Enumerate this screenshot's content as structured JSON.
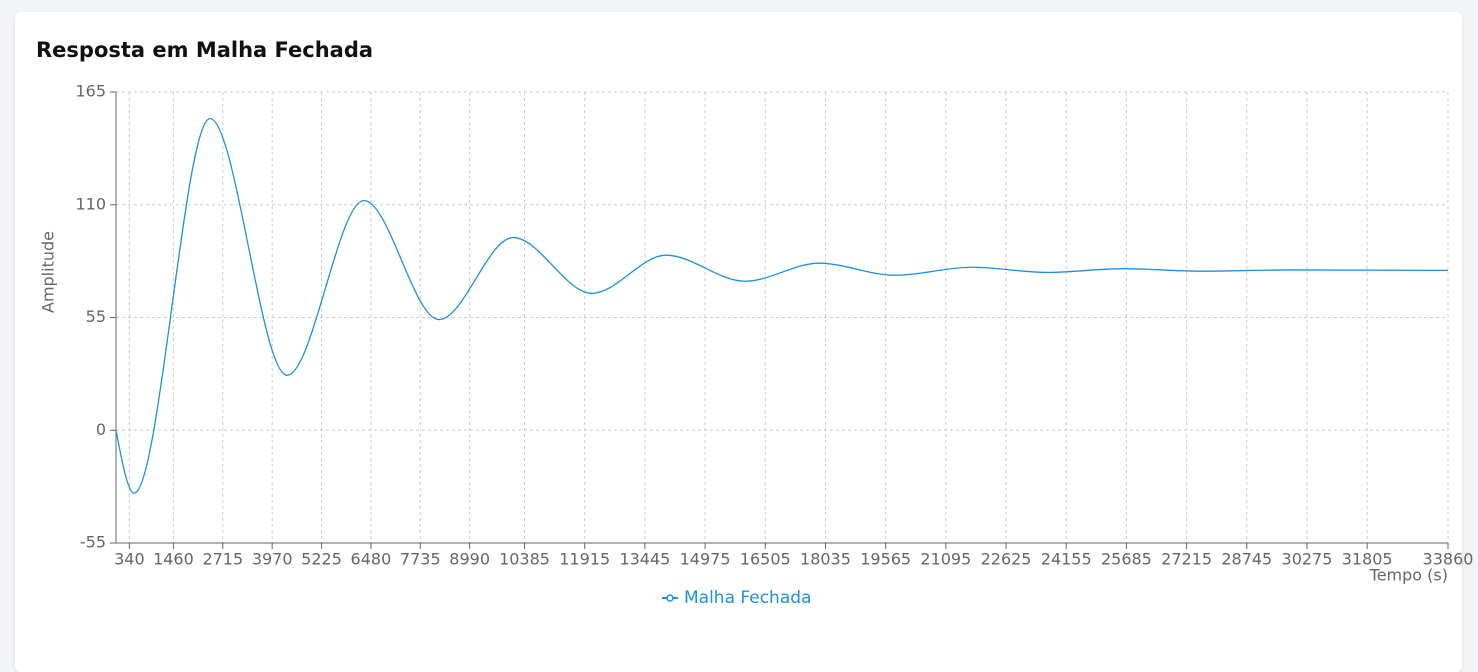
{
  "chart_data": {
    "type": "line",
    "title": "Resposta em Malha Fechada",
    "y_label": "Amplitude",
    "x_label": "Tempo (s)",
    "x": [
      0,
      458,
      2390,
      4347,
      6304,
      8210,
      10092,
      12100,
      13980,
      15989,
      17870,
      19802,
      21760,
      23690,
      25600,
      27550,
      29900,
      33860
    ],
    "series": [
      {
        "name": "Malha Fechada",
        "color": "#1c8fe3",
        "values": [
          0,
          -30.7,
          152,
          26.8,
          112,
          54,
          94,
          66.8,
          85.4,
          72.7,
          81.5,
          75.6,
          79.5,
          77,
          78.8,
          77.6,
          78.2,
          78
        ]
      }
    ],
    "xlim": [
      0,
      33860
    ],
    "xticks": [
      340,
      1460,
      2715,
      3970,
      5225,
      6480,
      7735,
      8990,
      10385,
      11915,
      13445,
      14975,
      16505,
      18035,
      19565,
      21095,
      22625,
      24155,
      25685,
      27215,
      28745,
      30275,
      31805,
      33860
    ],
    "ylim": [
      -55,
      165
    ],
    "yticks": [
      -55,
      0,
      55,
      110,
      165
    ],
    "grid": true
  }
}
